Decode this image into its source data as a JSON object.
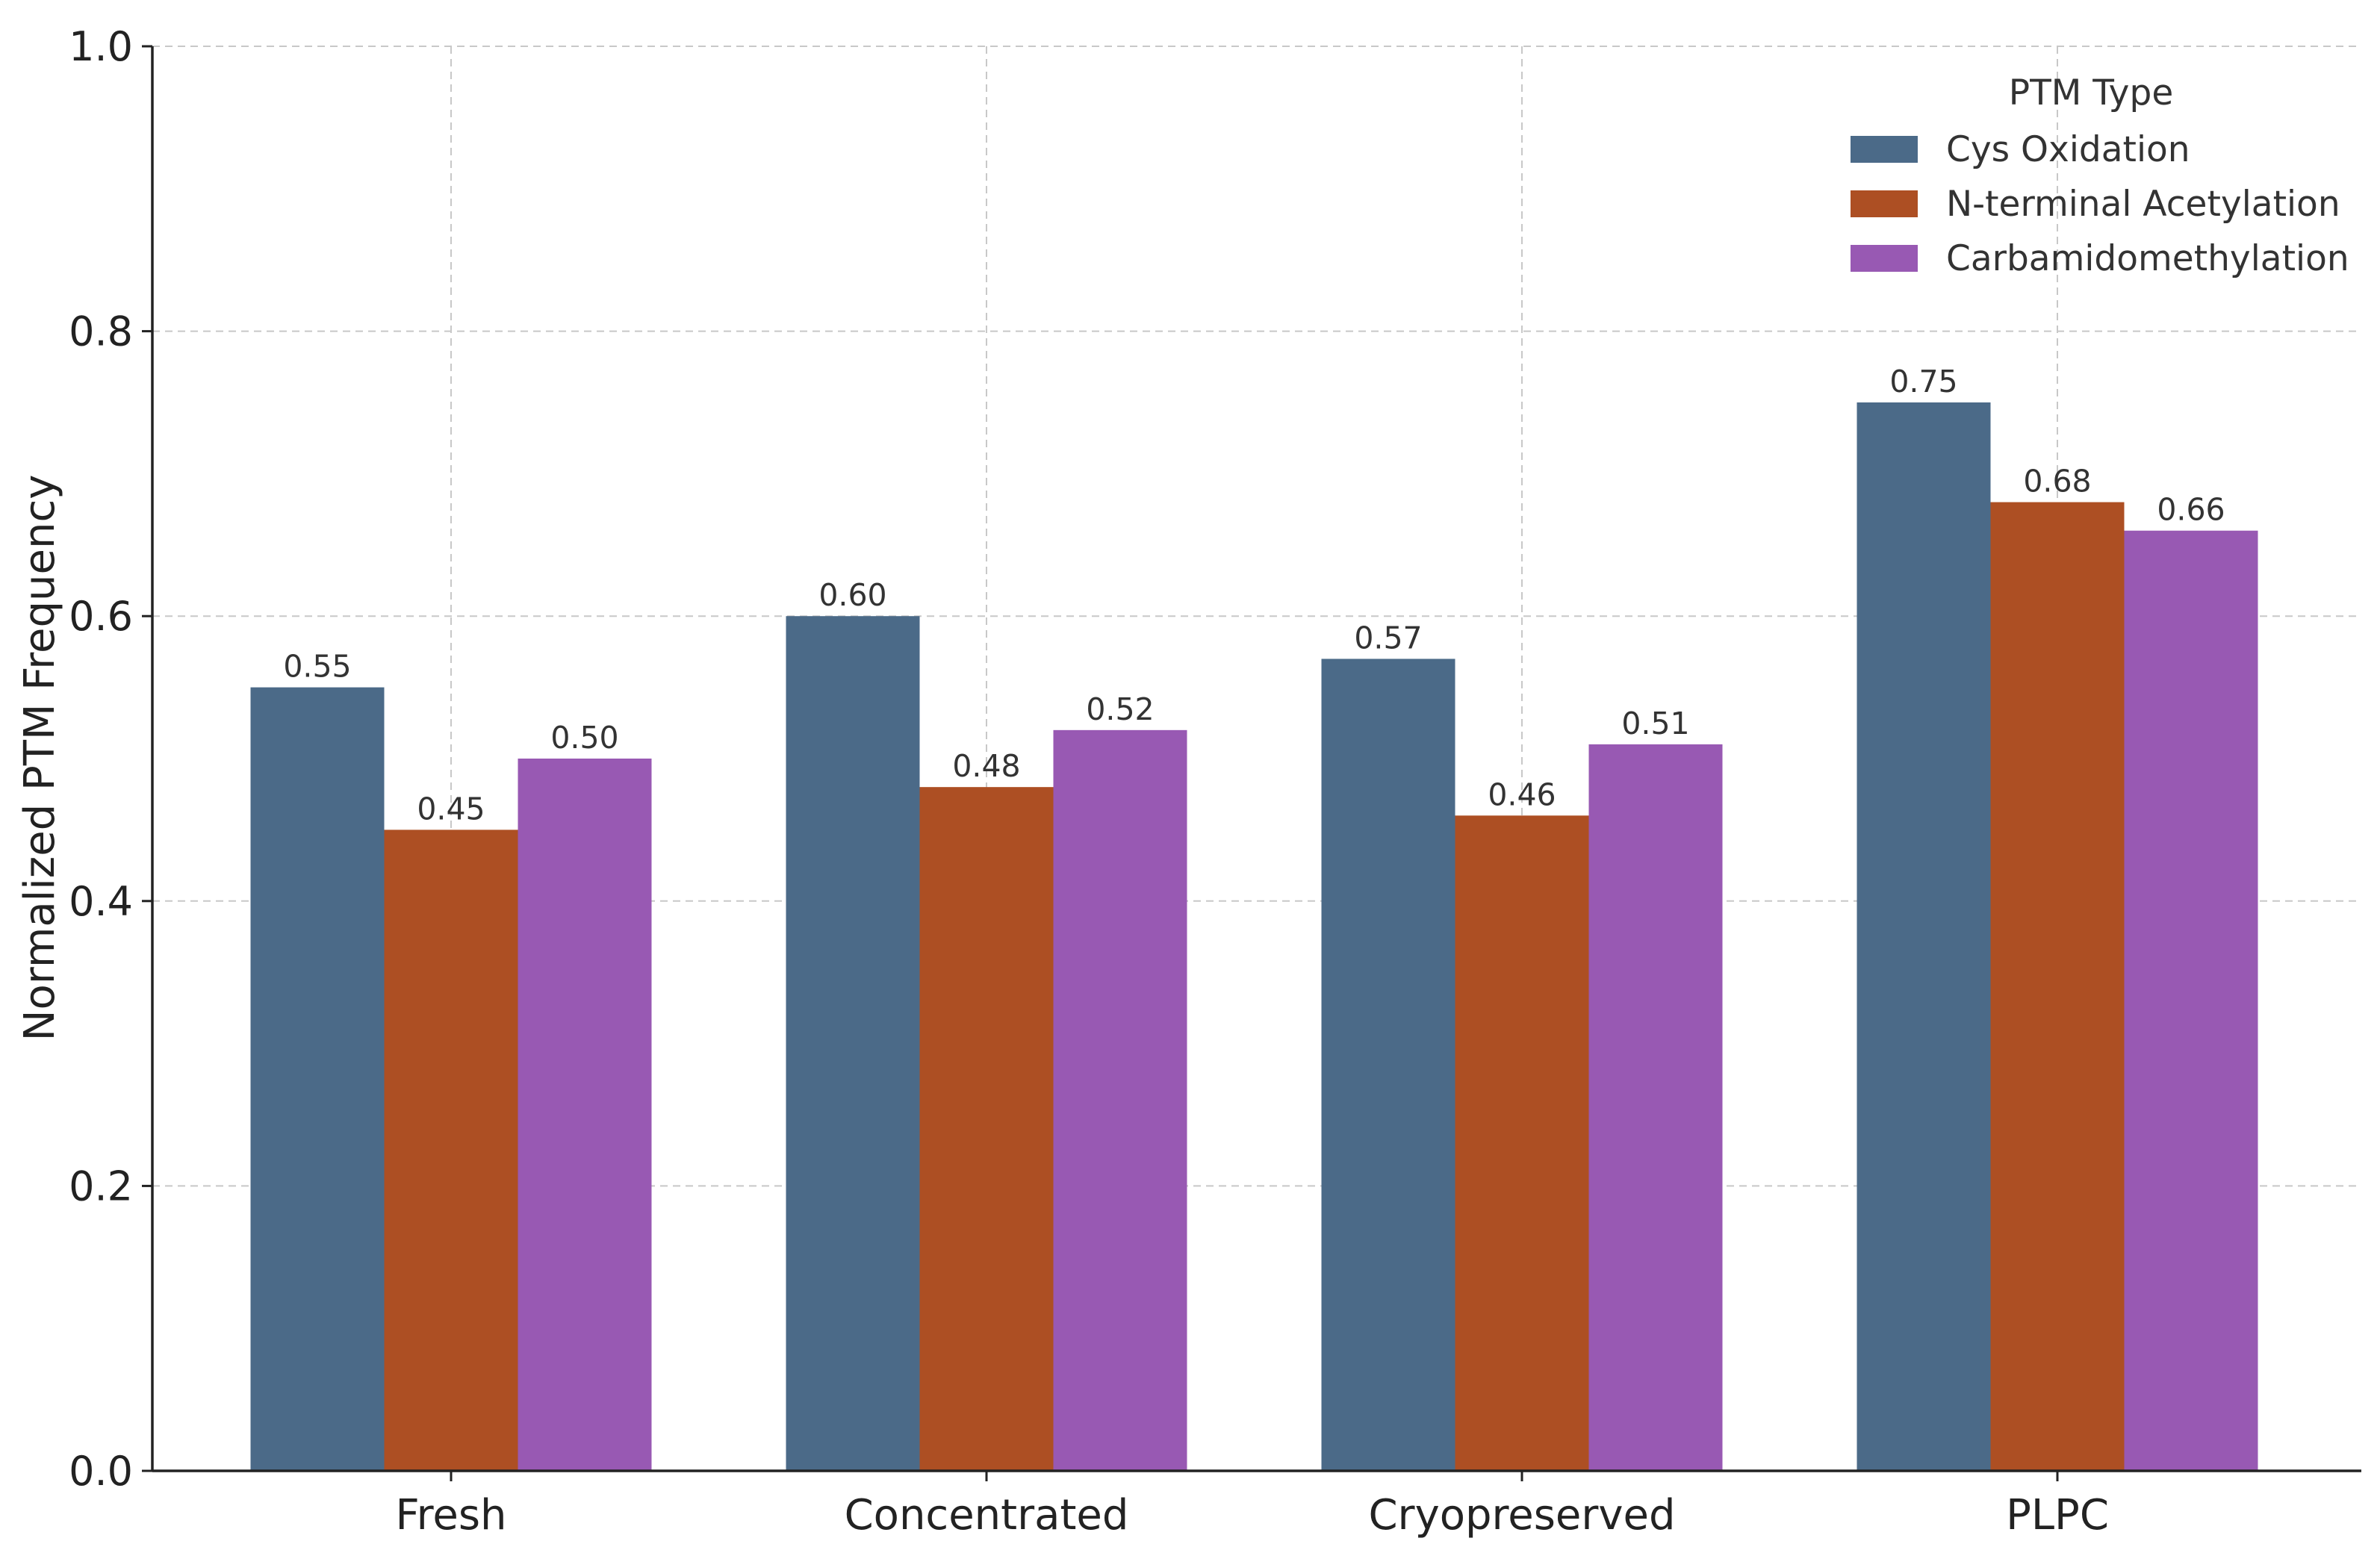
{
  "chart_data": {
    "type": "bar",
    "title": "",
    "xlabel": "",
    "ylabel": "Normalized PTM Frequency",
    "ylim": [
      0,
      1.0
    ],
    "yticks": [
      0.0,
      0.2,
      0.4,
      0.6,
      0.8,
      1.0
    ],
    "ytick_labels": [
      "0.0",
      "0.2",
      "0.4",
      "0.6",
      "0.8",
      "1.0"
    ],
    "categories": [
      "Fresh",
      "Concentrated",
      "Cryopreserved",
      "PLPC"
    ],
    "grid": true,
    "legend": {
      "title": "PTM Type",
      "placement": "top-right"
    },
    "series": [
      {
        "name": "Cys Oxidation",
        "color": "#4b6a88",
        "values": [
          0.55,
          0.6,
          0.57,
          0.75
        ],
        "labels": [
          "0.55",
          "0.60",
          "0.57",
          "0.75"
        ]
      },
      {
        "name": "N-terminal Acetylation",
        "color": "#ad4f23",
        "values": [
          0.45,
          0.48,
          0.46,
          0.68
        ],
        "labels": [
          "0.45",
          "0.48",
          "0.46",
          "0.68"
        ]
      },
      {
        "name": "Carbamidomethylation",
        "color": "#9859b3",
        "values": [
          0.5,
          0.52,
          0.51,
          0.66
        ],
        "labels": [
          "0.50",
          "0.52",
          "0.51",
          "0.66"
        ]
      }
    ]
  }
}
